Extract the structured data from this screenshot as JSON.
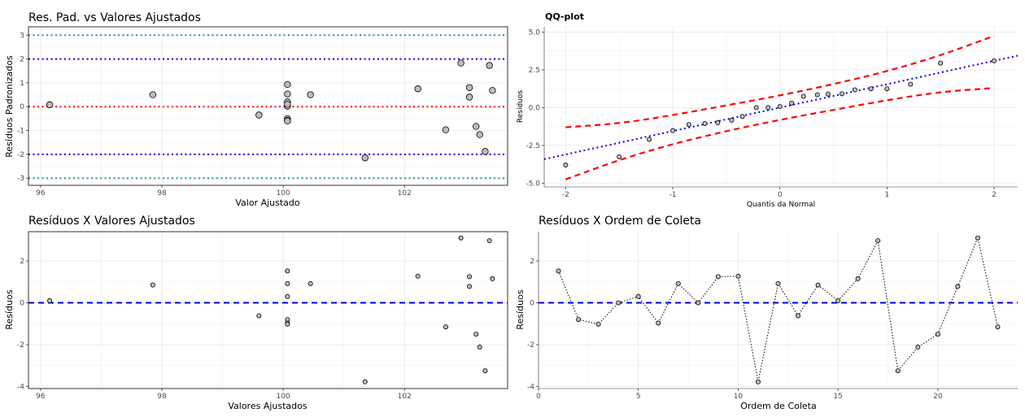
{
  "chart_data": [
    {
      "id": "p1",
      "type": "scatter",
      "title": "Res. Pad. vs Valores Ajustados",
      "xlabel": "Valor Ajustado",
      "ylabel": "Resíduos Padronizados",
      "xlim": [
        95.8,
        103.7
      ],
      "ylim": [
        -3.3,
        3.35
      ],
      "xticks": [
        96,
        98,
        100,
        102
      ],
      "yticks": [
        -3,
        -2,
        -1,
        0,
        1,
        2,
        3
      ],
      "hlines": [
        {
          "y": 3,
          "color": "#1fa37a",
          "style": "dotted"
        },
        {
          "y": 2,
          "color": "#0000ee",
          "style": "dotted"
        },
        {
          "y": 0,
          "color": "#ff0000",
          "style": "dotted"
        },
        {
          "y": -2,
          "color": "#0000ee",
          "style": "dotted"
        },
        {
          "y": -3,
          "color": "#1fa37a",
          "style": "dotted"
        }
      ],
      "x": [
        96.15,
        97.85,
        99.6,
        100.07,
        100.07,
        100.07,
        100.07,
        100.07,
        100.07,
        100.07,
        100.07,
        100.45,
        101.35,
        102.22,
        102.68,
        102.93,
        103.07,
        103.07,
        103.18,
        103.24,
        103.33,
        103.4,
        103.45
      ],
      "y": [
        0.08,
        0.5,
        -0.35,
        0.93,
        0.53,
        0.2,
        0.02,
        -0.5,
        -0.58,
        -0.6,
        0.1,
        0.5,
        -2.15,
        0.75,
        -0.97,
        1.83,
        0.4,
        0.8,
        -0.83,
        -1.17,
        -1.88,
        1.73,
        0.68
      ]
    },
    {
      "id": "p2",
      "type": "scatter",
      "title": "QQ-plot",
      "xlabel": "Quantis da Normal",
      "ylabel": "Resíduos",
      "xlim": [
        -2.2,
        2.22
      ],
      "ylim": [
        -5.25,
        5.35
      ],
      "xticks": [
        -2,
        -1,
        0,
        1,
        2
      ],
      "yticks": [
        -5.0,
        -2.5,
        0.0,
        2.5,
        5.0
      ],
      "ytick_labels": [
        "-5.0",
        "-2.5",
        "0.0",
        "2.5",
        "5.0"
      ],
      "x": [
        -2.0,
        -1.5,
        -1.22,
        -1.0,
        -0.85,
        -0.7,
        -0.58,
        -0.45,
        -0.35,
        -0.22,
        -0.11,
        0.0,
        0.11,
        0.22,
        0.35,
        0.45,
        0.58,
        0.7,
        0.85,
        1.0,
        1.22,
        1.5,
        2.0
      ],
      "y": [
        -3.8,
        -3.25,
        -2.1,
        -1.52,
        -1.12,
        -1.05,
        -1.0,
        -0.83,
        -0.58,
        0.0,
        0.0,
        0.07,
        0.3,
        0.75,
        0.85,
        0.9,
        0.92,
        1.18,
        1.25,
        1.25,
        1.55,
        2.95,
        3.1
      ],
      "ref_line": {
        "intercept": 0.0,
        "slope": 1.55,
        "color": "#0000ee",
        "style": "dotted"
      },
      "band_upper": [
        [
          -2.0,
          -1.3
        ],
        [
          -1.5,
          -1.05
        ],
        [
          -1.0,
          -0.5
        ],
        [
          -0.5,
          0.15
        ],
        [
          0.0,
          0.8
        ],
        [
          0.5,
          1.55
        ],
        [
          1.0,
          2.4
        ],
        [
          1.5,
          3.45
        ],
        [
          2.0,
          4.75
        ]
      ],
      "band_lower": [
        [
          -2.0,
          -4.75
        ],
        [
          -1.5,
          -3.45
        ],
        [
          -1.0,
          -2.4
        ],
        [
          -0.5,
          -1.55
        ],
        [
          0.0,
          -0.8
        ],
        [
          0.5,
          -0.15
        ],
        [
          1.0,
          0.5
        ],
        [
          1.5,
          1.05
        ],
        [
          2.0,
          1.3
        ]
      ],
      "band_color": "#ff0000"
    },
    {
      "id": "p3",
      "type": "scatter",
      "title": "Resíduos X Valores Ajustados",
      "xlabel": "Valores Ajustados",
      "ylabel": "Resíduos",
      "xlim": [
        95.8,
        103.7
      ],
      "ylim": [
        -4.1,
        3.4
      ],
      "xticks": [
        96,
        98,
        100,
        102
      ],
      "yticks": [
        -4,
        -2,
        0,
        2
      ],
      "hlines": [
        {
          "y": 0,
          "color": "#0000ee",
          "style": "dashed"
        }
      ],
      "x": [
        96.15,
        97.85,
        99.6,
        100.07,
        100.07,
        100.07,
        100.07,
        100.07,
        100.07,
        100.45,
        101.35,
        102.22,
        102.68,
        102.93,
        103.07,
        103.07,
        103.18,
        103.24,
        103.33,
        103.4,
        103.45
      ],
      "y": [
        0.1,
        0.85,
        -0.62,
        1.52,
        0.92,
        0.3,
        -0.8,
        -0.97,
        -1.02,
        0.92,
        -3.78,
        1.27,
        -1.15,
        3.1,
        0.78,
        1.25,
        -1.5,
        -2.12,
        -3.25,
        2.97,
        1.15
      ]
    },
    {
      "id": "p4",
      "type": "line",
      "title": "Resíduos X Ordem de Coleta",
      "xlabel": "Ordem de Coleta",
      "ylabel": "Resíduos",
      "xlim": [
        0,
        24
      ],
      "ylim": [
        -4.1,
        3.4
      ],
      "xticks": [
        0,
        5,
        10,
        15,
        20
      ],
      "yticks": [
        -4,
        -2,
        0,
        2
      ],
      "hlines": [
        {
          "y": 0,
          "color": "#0000ee",
          "style": "dashed"
        }
      ],
      "x": [
        1,
        2,
        3,
        4,
        5,
        6,
        7,
        8,
        9,
        10,
        11,
        12,
        13,
        14,
        15,
        16,
        17,
        18,
        19,
        20,
        21,
        22,
        23
      ],
      "y": [
        1.52,
        -0.8,
        -1.02,
        0.0,
        0.3,
        -0.97,
        0.92,
        0.0,
        1.25,
        1.27,
        -3.78,
        0.92,
        -0.62,
        0.85,
        0.1,
        1.15,
        2.97,
        -3.25,
        -2.12,
        -1.5,
        0.78,
        3.1,
        -1.15
      ]
    }
  ]
}
